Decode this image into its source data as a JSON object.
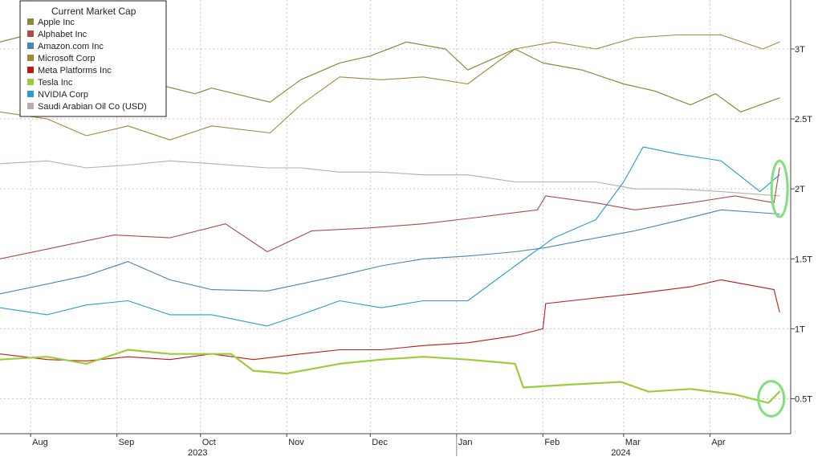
{
  "chart_data": {
    "type": "line",
    "title": "",
    "xlabel": "",
    "ylabel": "",
    "ylim": [
      0.25,
      3.35
    ],
    "y_axis_position": "right",
    "y_ticks": [
      0.5,
      1.0,
      1.5,
      2.0,
      2.5,
      3.0
    ],
    "y_tick_labels": [
      "0.5T",
      "1T",
      "1.5T",
      "2T",
      "2.5T",
      "3T"
    ],
    "grid": true,
    "x_range": [
      "2023-07-21",
      "2024-04-30"
    ],
    "x_month_labels": [
      {
        "label": "Aug",
        "date": "2023-08-01"
      },
      {
        "label": "Sep",
        "date": "2023-09-01"
      },
      {
        "label": "Oct",
        "date": "2023-10-01"
      },
      {
        "label": "Nov",
        "date": "2023-11-01"
      },
      {
        "label": "Dec",
        "date": "2023-12-01"
      },
      {
        "label": "Jan",
        "date": "2024-01-01"
      },
      {
        "label": "Feb",
        "date": "2024-02-01"
      },
      {
        "label": "Mar",
        "date": "2024-03-01"
      },
      {
        "label": "Apr",
        "date": "2024-04-01"
      }
    ],
    "x_year_labels": [
      {
        "label": "2023",
        "date": "2023-09-30"
      },
      {
        "label": "2024",
        "date": "2024-02-29"
      }
    ],
    "year_divider": "2024-01-01",
    "legend": {
      "title": "Current Market Cap",
      "placement": "top-left"
    },
    "series": [
      {
        "name": "Apple Inc",
        "color": "#8a8a3a",
        "width": 1.2,
        "points": [
          [
            "2023-07-21",
            3.05
          ],
          [
            "2023-07-31",
            3.1
          ],
          [
            "2023-08-07",
            2.85
          ],
          [
            "2023-08-21",
            2.75
          ],
          [
            "2023-09-05",
            2.95
          ],
          [
            "2023-09-15",
            2.75
          ],
          [
            "2023-09-29",
            2.68
          ],
          [
            "2023-10-05",
            2.72
          ],
          [
            "2023-10-26",
            2.62
          ],
          [
            "2023-11-06",
            2.78
          ],
          [
            "2023-11-20",
            2.9
          ],
          [
            "2023-12-01",
            2.95
          ],
          [
            "2023-12-14",
            3.05
          ],
          [
            "2023-12-28",
            3.0
          ],
          [
            "2024-01-05",
            2.85
          ],
          [
            "2024-01-22",
            3.0
          ],
          [
            "2024-02-01",
            2.9
          ],
          [
            "2024-02-15",
            2.85
          ],
          [
            "2024-03-01",
            2.75
          ],
          [
            "2024-03-12",
            2.7
          ],
          [
            "2024-03-25",
            2.6
          ],
          [
            "2024-04-03",
            2.68
          ],
          [
            "2024-04-12",
            2.55
          ],
          [
            "2024-04-26",
            2.65
          ]
        ]
      },
      {
        "name": "Alphabet Inc",
        "color": "#b04a4a",
        "width": 1.1,
        "points": [
          [
            "2023-07-21",
            1.5
          ],
          [
            "2023-08-07",
            1.57
          ],
          [
            "2023-08-31",
            1.67
          ],
          [
            "2023-09-20",
            1.65
          ],
          [
            "2023-10-10",
            1.75
          ],
          [
            "2023-10-25",
            1.55
          ],
          [
            "2023-11-10",
            1.7
          ],
          [
            "2023-11-30",
            1.72
          ],
          [
            "2023-12-20",
            1.75
          ],
          [
            "2024-01-10",
            1.8
          ],
          [
            "2024-01-30",
            1.85
          ],
          [
            "2024-02-02",
            1.95
          ],
          [
            "2024-02-20",
            1.9
          ],
          [
            "2024-03-05",
            1.85
          ],
          [
            "2024-03-25",
            1.9
          ],
          [
            "2024-04-10",
            1.95
          ],
          [
            "2024-04-24",
            1.9
          ],
          [
            "2024-04-26",
            2.15
          ]
        ]
      },
      {
        "name": "Amazon.com Inc",
        "color": "#4a86b0",
        "width": 1.1,
        "points": [
          [
            "2023-07-21",
            1.25
          ],
          [
            "2023-08-07",
            1.32
          ],
          [
            "2023-08-21",
            1.38
          ],
          [
            "2023-09-05",
            1.48
          ],
          [
            "2023-09-20",
            1.35
          ],
          [
            "2023-10-05",
            1.28
          ],
          [
            "2023-10-25",
            1.27
          ],
          [
            "2023-11-06",
            1.32
          ],
          [
            "2023-11-20",
            1.38
          ],
          [
            "2023-12-05",
            1.45
          ],
          [
            "2023-12-20",
            1.5
          ],
          [
            "2024-01-05",
            1.52
          ],
          [
            "2024-01-22",
            1.55
          ],
          [
            "2024-02-02",
            1.58
          ],
          [
            "2024-02-15",
            1.63
          ],
          [
            "2024-03-05",
            1.7
          ],
          [
            "2024-03-20",
            1.77
          ],
          [
            "2024-04-05",
            1.85
          ],
          [
            "2024-04-26",
            1.82
          ]
        ]
      },
      {
        "name": "Microsoft Corp",
        "color": "#a08a3a",
        "width": 1.1,
        "points": [
          [
            "2023-07-21",
            2.55
          ],
          [
            "2023-08-07",
            2.5
          ],
          [
            "2023-08-21",
            2.38
          ],
          [
            "2023-09-05",
            2.45
          ],
          [
            "2023-09-20",
            2.35
          ],
          [
            "2023-10-05",
            2.45
          ],
          [
            "2023-10-26",
            2.4
          ],
          [
            "2023-11-06",
            2.6
          ],
          [
            "2023-11-20",
            2.8
          ],
          [
            "2023-12-05",
            2.78
          ],
          [
            "2023-12-20",
            2.8
          ],
          [
            "2024-01-05",
            2.75
          ],
          [
            "2024-01-22",
            3.0
          ],
          [
            "2024-02-05",
            3.05
          ],
          [
            "2024-02-20",
            3.0
          ],
          [
            "2024-03-05",
            3.08
          ],
          [
            "2024-03-20",
            3.1
          ],
          [
            "2024-04-05",
            3.1
          ],
          [
            "2024-04-20",
            3.0
          ],
          [
            "2024-04-26",
            3.05
          ]
        ]
      },
      {
        "name": "Meta Platforms Inc",
        "color": "#c01818",
        "width": 1.1,
        "points": [
          [
            "2023-07-21",
            0.82
          ],
          [
            "2023-08-07",
            0.78
          ],
          [
            "2023-08-21",
            0.77
          ],
          [
            "2023-09-05",
            0.8
          ],
          [
            "2023-09-20",
            0.78
          ],
          [
            "2023-10-05",
            0.82
          ],
          [
            "2023-10-20",
            0.78
          ],
          [
            "2023-11-06",
            0.82
          ],
          [
            "2023-11-20",
            0.85
          ],
          [
            "2023-12-05",
            0.85
          ],
          [
            "2023-12-20",
            0.88
          ],
          [
            "2024-01-05",
            0.9
          ],
          [
            "2024-01-22",
            0.95
          ],
          [
            "2024-02-01",
            1.0
          ],
          [
            "2024-02-02",
            1.18
          ],
          [
            "2024-02-20",
            1.22
          ],
          [
            "2024-03-05",
            1.25
          ],
          [
            "2024-03-25",
            1.3
          ],
          [
            "2024-04-05",
            1.35
          ],
          [
            "2024-04-24",
            1.28
          ],
          [
            "2024-04-26",
            1.12
          ]
        ]
      },
      {
        "name": "Tesla Inc",
        "color": "#9ccc3c",
        "width": 2.2,
        "points": [
          [
            "2023-07-21",
            0.78
          ],
          [
            "2023-08-07",
            0.8
          ],
          [
            "2023-08-21",
            0.75
          ],
          [
            "2023-09-05",
            0.85
          ],
          [
            "2023-09-20",
            0.82
          ],
          [
            "2023-10-05",
            0.82
          ],
          [
            "2023-10-12",
            0.82
          ],
          [
            "2023-10-20",
            0.7
          ],
          [
            "2023-11-01",
            0.68
          ],
          [
            "2023-11-20",
            0.75
          ],
          [
            "2023-12-05",
            0.78
          ],
          [
            "2023-12-20",
            0.8
          ],
          [
            "2024-01-05",
            0.78
          ],
          [
            "2024-01-22",
            0.75
          ],
          [
            "2024-01-25",
            0.58
          ],
          [
            "2024-02-10",
            0.6
          ],
          [
            "2024-02-29",
            0.62
          ],
          [
            "2024-03-10",
            0.55
          ],
          [
            "2024-03-25",
            0.57
          ],
          [
            "2024-04-10",
            0.53
          ],
          [
            "2024-04-22",
            0.47
          ],
          [
            "2024-04-26",
            0.55
          ]
        ]
      },
      {
        "name": "NVIDIA Corp",
        "color": "#2a9ad6",
        "width": 1.1,
        "points": [
          [
            "2023-07-21",
            1.15
          ],
          [
            "2023-08-07",
            1.1
          ],
          [
            "2023-08-21",
            1.17
          ],
          [
            "2023-09-05",
            1.2
          ],
          [
            "2023-09-20",
            1.1
          ],
          [
            "2023-10-05",
            1.1
          ],
          [
            "2023-10-25",
            1.02
          ],
          [
            "2023-11-06",
            1.1
          ],
          [
            "2023-11-20",
            1.2
          ],
          [
            "2023-12-05",
            1.15
          ],
          [
            "2023-12-20",
            1.2
          ],
          [
            "2024-01-05",
            1.2
          ],
          [
            "2024-01-22",
            1.45
          ],
          [
            "2024-02-05",
            1.65
          ],
          [
            "2024-02-20",
            1.78
          ],
          [
            "2024-03-01",
            2.05
          ],
          [
            "2024-03-08",
            2.3
          ],
          [
            "2024-03-20",
            2.25
          ],
          [
            "2024-04-05",
            2.2
          ],
          [
            "2024-04-19",
            1.98
          ],
          [
            "2024-04-26",
            2.1
          ]
        ]
      },
      {
        "name": "Saudi Arabian Oil Co (USD)",
        "color": "#b8acb0",
        "width": 1.1,
        "points": [
          [
            "2023-07-21",
            2.18
          ],
          [
            "2023-08-07",
            2.2
          ],
          [
            "2023-08-21",
            2.15
          ],
          [
            "2023-09-05",
            2.17
          ],
          [
            "2023-09-20",
            2.2
          ],
          [
            "2023-10-05",
            2.18
          ],
          [
            "2023-10-25",
            2.15
          ],
          [
            "2023-11-06",
            2.15
          ],
          [
            "2023-11-20",
            2.12
          ],
          [
            "2023-12-05",
            2.12
          ],
          [
            "2023-12-20",
            2.1
          ],
          [
            "2024-01-05",
            2.1
          ],
          [
            "2024-01-22",
            2.05
          ],
          [
            "2024-02-05",
            2.05
          ],
          [
            "2024-02-20",
            2.05
          ],
          [
            "2024-03-05",
            2.0
          ],
          [
            "2024-03-20",
            2.0
          ],
          [
            "2024-04-05",
            1.98
          ],
          [
            "2024-04-26",
            1.95
          ]
        ]
      }
    ],
    "annotations": [
      {
        "type": "ellipse",
        "color": "#7ee07e",
        "date": "2024-04-26",
        "center_value": 2.0,
        "value_span": 0.4
      },
      {
        "type": "ellipse",
        "color": "#7ee07e",
        "date": "2024-04-23",
        "center_value": 0.5,
        "value_span": 0.25
      }
    ],
    "draw_order": [
      "Saudi Arabian Oil Co (USD)",
      "Microsoft Corp",
      "Apple Inc",
      "Amazon.com Inc",
      "Meta Platforms Inc",
      "NVIDIA Corp",
      "Tesla Inc",
      "Alphabet Inc"
    ]
  }
}
